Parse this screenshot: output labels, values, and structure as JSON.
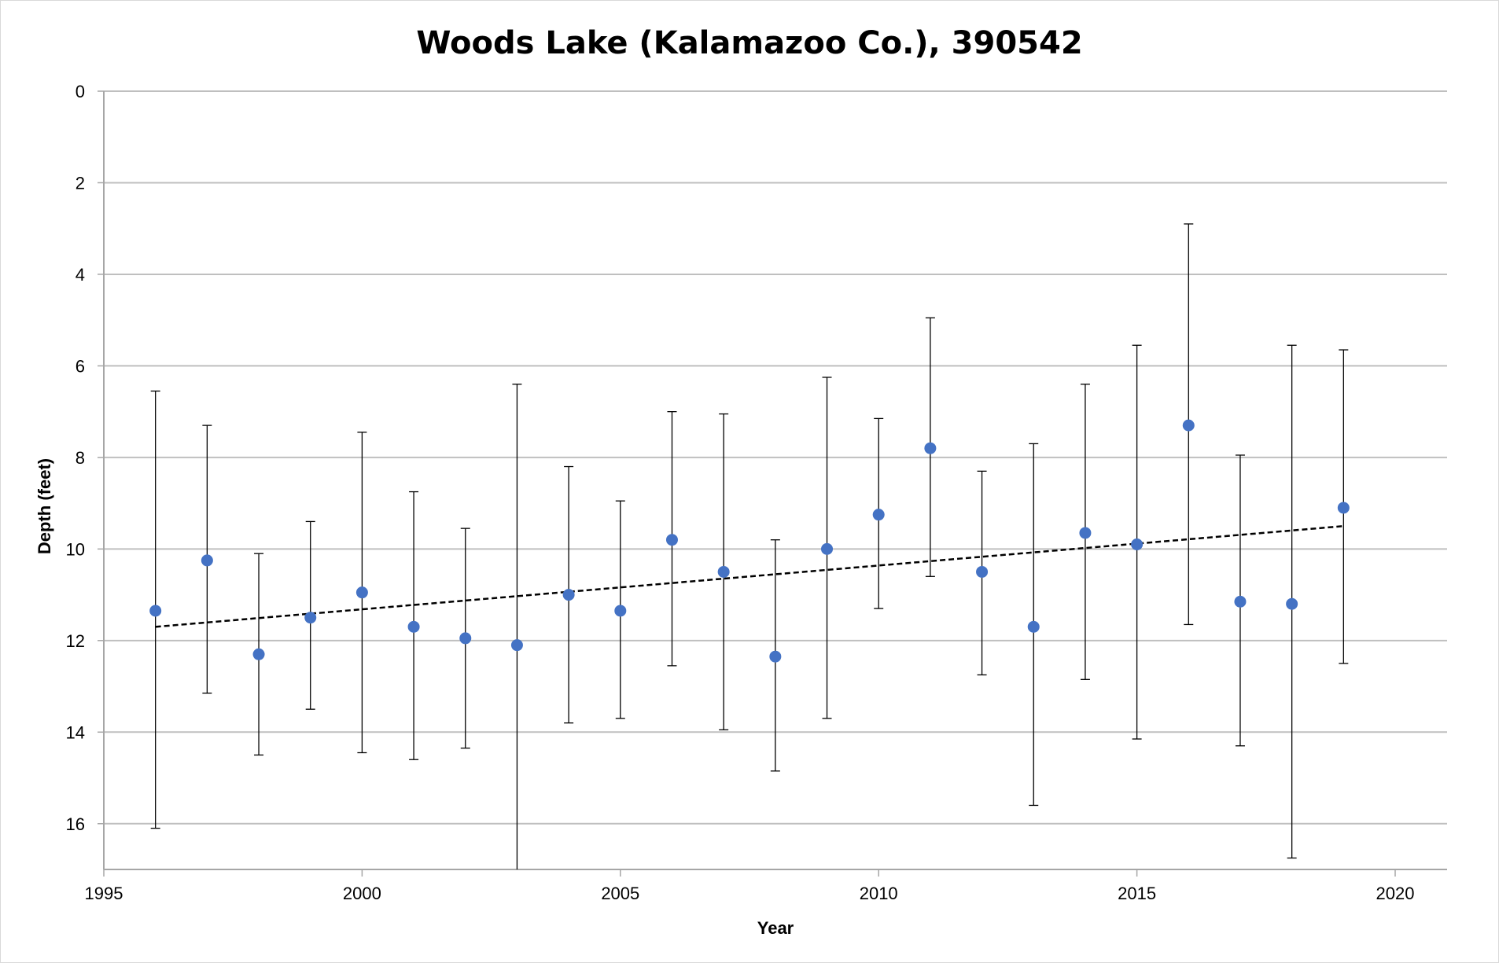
{
  "chart_data": {
    "type": "scatter",
    "title": "Woods Lake (Kalamazoo Co.), 390542",
    "xlabel": "Year",
    "ylabel": "Depth (feet)",
    "xlim": [
      1995,
      2020
    ],
    "ylim": [
      0,
      17
    ],
    "y_reversed": true,
    "x_ticks": [
      "1995",
      "2000",
      "2005",
      "2010",
      "2015",
      "2020"
    ],
    "y_ticks": [
      "0",
      "2",
      "4",
      "6",
      "8",
      "10",
      "12",
      "14",
      "16"
    ],
    "grid": "horizontal",
    "point_color": "#4472c4",
    "series": [
      {
        "points": [
          {
            "x": 1996,
            "y": 11.35,
            "low": 6.55,
            "high": 16.1
          },
          {
            "x": 1997,
            "y": 10.25,
            "low": 7.3,
            "high": 13.15
          },
          {
            "x": 1998,
            "y": 12.3,
            "low": 10.1,
            "high": 14.5
          },
          {
            "x": 1999,
            "y": 11.5,
            "low": 9.4,
            "high": 13.5
          },
          {
            "x": 2000,
            "y": 10.95,
            "low": 7.45,
            "high": 14.45
          },
          {
            "x": 2001,
            "y": 11.7,
            "low": 8.75,
            "high": 14.6
          },
          {
            "x": 2002,
            "y": 11.95,
            "low": 9.55,
            "high": 14.35
          },
          {
            "x": 2003,
            "y": 12.1,
            "low": 6.4,
            "high": 17.0
          },
          {
            "x": 2004,
            "y": 11.0,
            "low": 8.2,
            "high": 13.8
          },
          {
            "x": 2005,
            "y": 11.35,
            "low": 8.95,
            "high": 13.7
          },
          {
            "x": 2006,
            "y": 9.8,
            "low": 7.0,
            "high": 12.55
          },
          {
            "x": 2007,
            "y": 10.5,
            "low": 7.05,
            "high": 13.95
          },
          {
            "x": 2008,
            "y": 12.35,
            "low": 9.8,
            "high": 14.85
          },
          {
            "x": 2009,
            "y": 10.0,
            "low": 6.25,
            "high": 13.7
          },
          {
            "x": 2010,
            "y": 9.25,
            "low": 7.15,
            "high": 11.3
          },
          {
            "x": 2011,
            "y": 7.8,
            "low": 4.95,
            "high": 10.6
          },
          {
            "x": 2012,
            "y": 10.5,
            "low": 8.3,
            "high": 12.75
          },
          {
            "x": 2013,
            "y": 11.7,
            "low": 7.7,
            "high": 15.6
          },
          {
            "x": 2014,
            "y": 9.65,
            "low": 6.4,
            "high": 12.85
          },
          {
            "x": 2015,
            "y": 9.9,
            "low": 5.55,
            "high": 14.15
          },
          {
            "x": 2016,
            "y": 7.3,
            "low": 2.9,
            "high": 11.65
          },
          {
            "x": 2017,
            "y": 11.15,
            "low": 7.95,
            "high": 14.3
          },
          {
            "x": 2018,
            "y": 11.2,
            "low": 5.55,
            "high": 16.75
          },
          {
            "x": 2019,
            "y": 9.1,
            "low": 5.65,
            "high": 12.5
          }
        ]
      }
    ],
    "trendline": {
      "style": "dashed",
      "color": "#000000",
      "from": {
        "x": 1996,
        "y": 11.7
      },
      "to": {
        "x": 2019,
        "y": 9.5
      }
    }
  }
}
